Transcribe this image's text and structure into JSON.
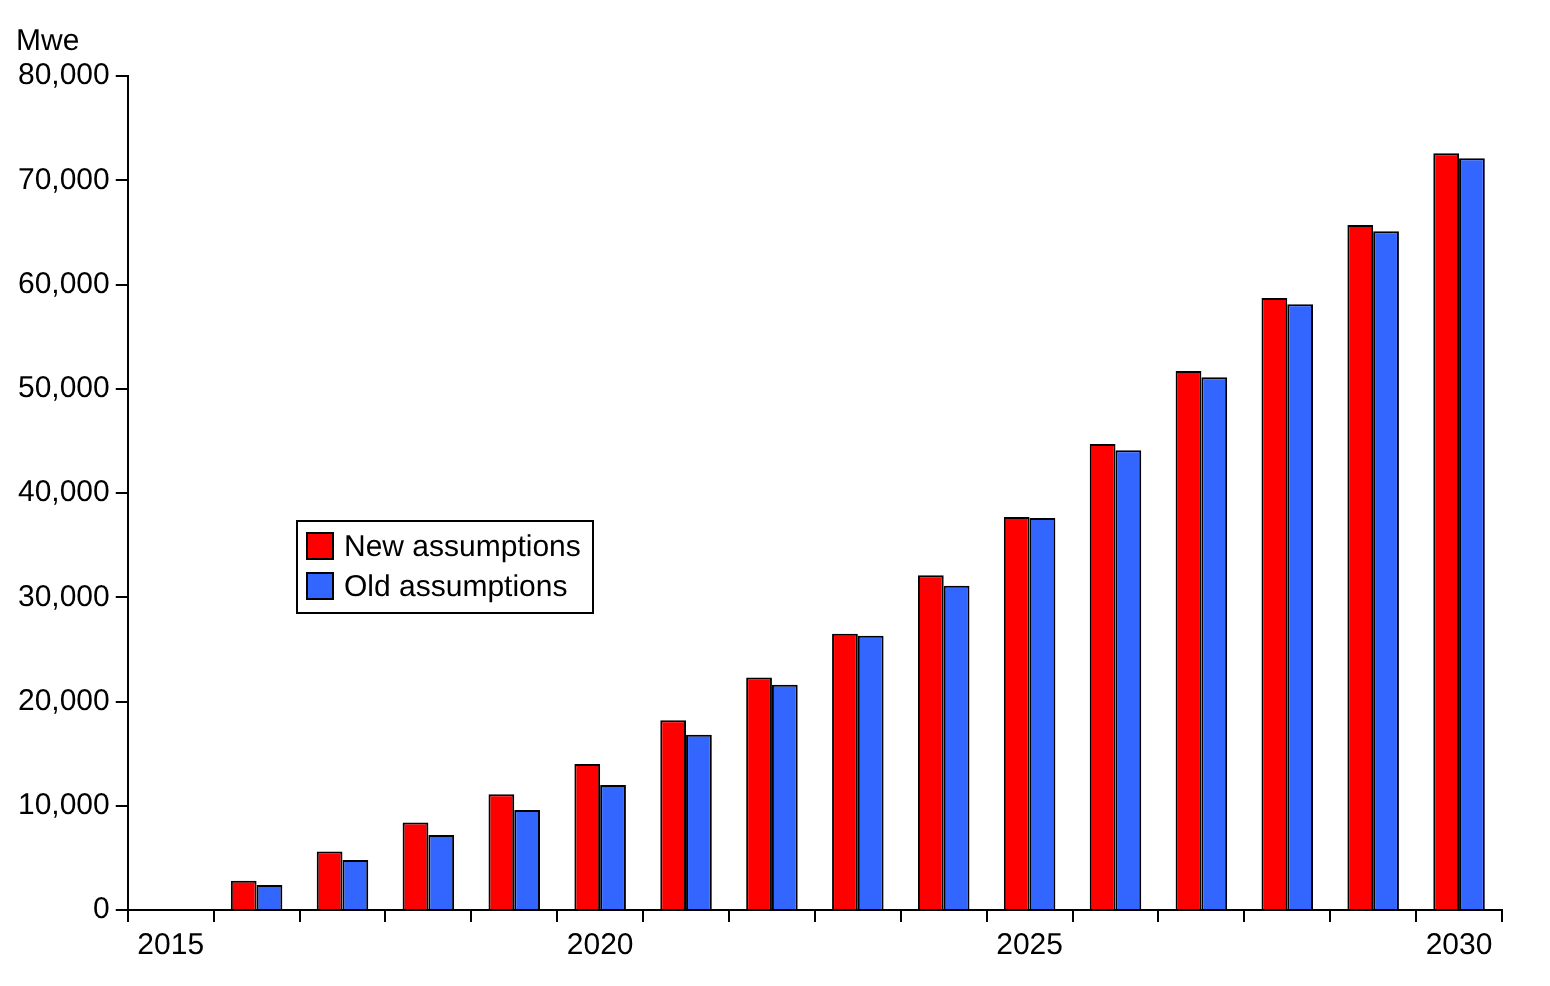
{
  "chart_data": {
    "type": "bar",
    "ylabel": "Mwe",
    "categories": [
      "2015",
      null,
      null,
      null,
      null,
      "2020",
      null,
      null,
      null,
      null,
      "2025",
      null,
      null,
      null,
      null,
      "2030"
    ],
    "series": [
      {
        "name": "New assumptions",
        "color": "#ff0000",
        "values": [
          null,
          2800,
          5600,
          8400,
          11100,
          14000,
          18200,
          22300,
          26500,
          32100,
          37700,
          44700,
          51700,
          58700,
          65700,
          72600
        ]
      },
      {
        "name": "Old assumptions",
        "color": "#3366ff",
        "values": [
          null,
          2400,
          4800,
          7200,
          9600,
          12000,
          16800,
          21600,
          26300,
          31100,
          37600,
          44100,
          51100,
          58100,
          65100,
          72100
        ]
      }
    ],
    "ylim": [
      0,
      80000
    ],
    "yticks": [
      0,
      {
        "value": 10000,
        "label": "10,000"
      },
      {
        "value": 20000,
        "label": "20,000"
      },
      {
        "value": 30000,
        "label": "30,000"
      },
      {
        "value": 40000,
        "label": "40,000"
      },
      {
        "value": 50000,
        "label": "50,000"
      },
      {
        "value": 60000,
        "label": "60,000"
      },
      {
        "value": 70000,
        "label": "70,000"
      },
      {
        "value": 80000,
        "label": "80,000"
      }
    ],
    "grid": false,
    "legend": "left"
  }
}
